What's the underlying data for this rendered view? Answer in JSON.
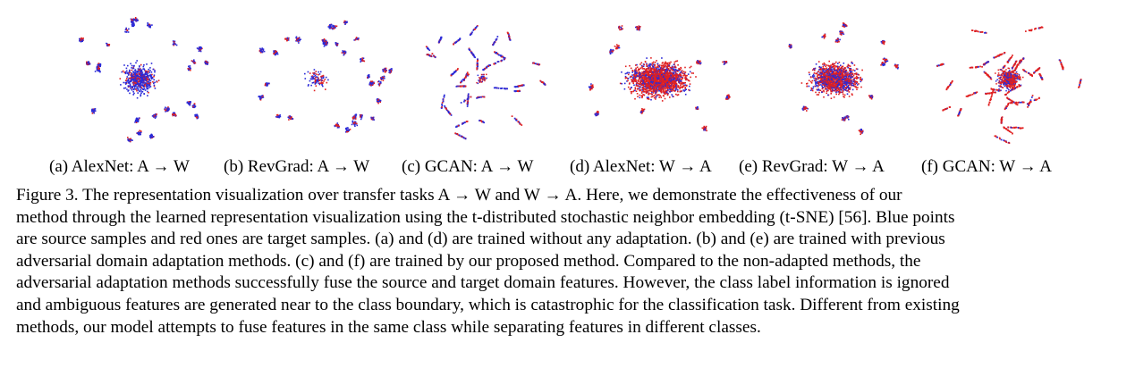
{
  "figure": {
    "panels": [
      {
        "id": "a",
        "subcaption": "(a) AlexNet: A → W",
        "pattern": "mixed-cloud"
      },
      {
        "id": "b",
        "subcaption": "(b) RevGrad: A → W",
        "pattern": "clusters"
      },
      {
        "id": "c",
        "subcaption": "(c) GCAN: A → W",
        "pattern": "strokes"
      },
      {
        "id": "d",
        "subcaption": "(d) AlexNet: W → A",
        "pattern": "dense-cloud"
      },
      {
        "id": "e",
        "subcaption": "(e) RevGrad: W → A",
        "pattern": "cloud-clusters"
      },
      {
        "id": "f",
        "subcaption": "(f) GCAN: W → A",
        "pattern": "red-strokes"
      }
    ],
    "colors": {
      "source": "#2a2ad8",
      "target": "#e02020"
    },
    "caption_lines": [
      "Figure 3. The representation visualization over transfer tasks A → W and W → A. Here, we demonstrate the effectiveness of our",
      "method through the learned representation visualization using the t-distributed stochastic neighbor embedding (t-SNE) [56]. Blue points",
      "are source samples and red ones are target samples. (a) and (d) are trained without any adaptation. (b) and (e) are trained with previous",
      "adversarial domain adaptation methods. (c) and (f) are trained by our proposed method. Compared to the non-adapted methods, the",
      "adversarial adaptation methods successfully fuse the source and target domain features. However, the class label information is ignored",
      "and ambiguous features are generated near to the class boundary, which is catastrophic for the classification task. Different from existing",
      "methods, our model attempts to fuse features in the same class while separating features in different classes."
    ]
  }
}
